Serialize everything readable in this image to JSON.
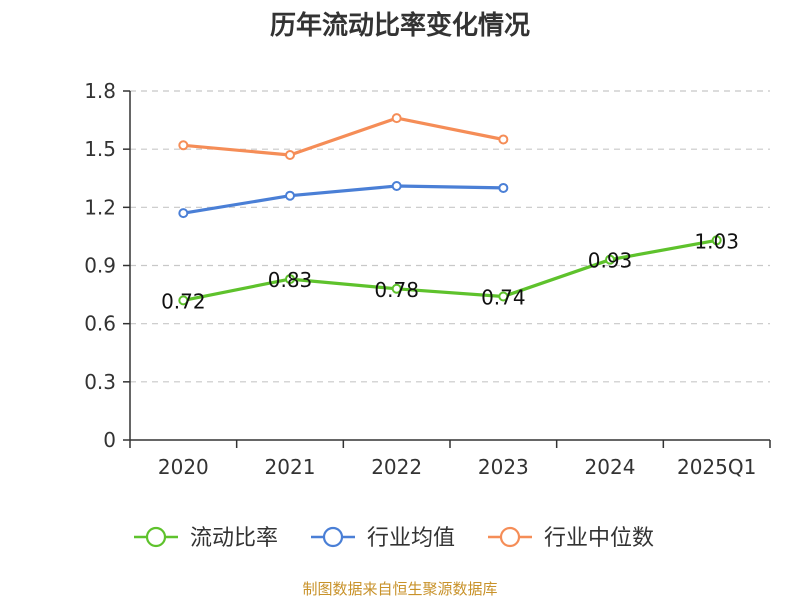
{
  "colors": {
    "流动比率": "#5ec22c",
    "行业均值": "#4a7fd6",
    "行业中位数": "#f58d57",
    "source": "#c8922a"
  },
  "source_note": "制图数据来自恒生聚源数据库",
  "chart_data": {
    "type": "line",
    "title": "历年流动比率变化情况",
    "categories": [
      "2020",
      "2021",
      "2022",
      "2023",
      "2024",
      "2025Q1"
    ],
    "ylim": [
      0,
      1.8
    ],
    "yticks": [
      "0",
      "0.3",
      "0.6",
      "0.9",
      "1.2",
      "1.5",
      "1.8"
    ],
    "grid": true,
    "legend_position": "bottom",
    "series": [
      {
        "name": "流动比率",
        "values": [
          0.72,
          0.83,
          0.78,
          0.74,
          0.93,
          1.03
        ],
        "labels": [
          "0.72",
          "0.83",
          "0.78",
          "0.74",
          "0.93",
          "1.03"
        ]
      },
      {
        "name": "行业均值",
        "values": [
          1.17,
          1.26,
          1.31,
          1.3,
          null,
          null
        ]
      },
      {
        "name": "行业中位数",
        "values": [
          1.52,
          1.47,
          1.66,
          1.55,
          null,
          null
        ]
      }
    ]
  }
}
